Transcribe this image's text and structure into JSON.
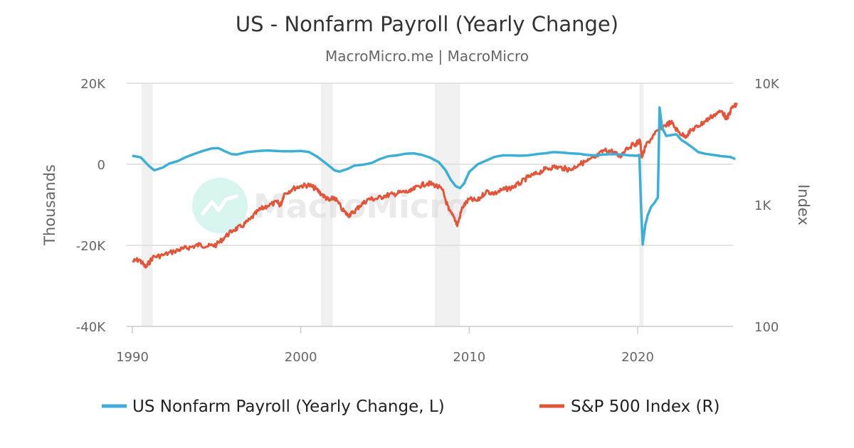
{
  "chart_data": {
    "type": "line",
    "title": "US - Nonfarm Payroll (Yearly Change)",
    "subtitle": "MacroMicro.me | MacroMicro",
    "watermark": "MacroMicro",
    "left_axis": {
      "title": "Thousands",
      "min": -40000,
      "max": 20000,
      "ticks": [
        20000,
        0,
        -20000,
        -40000
      ],
      "tick_labels": [
        "20K",
        "0",
        "-20K",
        "-40K"
      ]
    },
    "right_axis": {
      "title": "Index",
      "scale": "log",
      "min": 100,
      "max": 10000,
      "ticks": [
        10000,
        1000,
        100
      ],
      "tick_labels": [
        "10K",
        "1K",
        "100"
      ]
    },
    "x_axis": {
      "min": 1990,
      "max": 2026,
      "ticks": [
        1990,
        2000,
        2010,
        2020
      ],
      "tick_labels": [
        "1990",
        "2000",
        "2010",
        "2020"
      ]
    },
    "recessions": [
      [
        1990.55,
        1991.2
      ],
      [
        2001.2,
        2001.9
      ],
      [
        2007.95,
        2009.45
      ],
      [
        2020.1,
        2020.35
      ]
    ],
    "series": [
      {
        "name": "US Nonfarm Payroll (Yearly Change, L)",
        "axis": "left",
        "color": "#3eaed6",
        "points": [
          [
            1990.0,
            2100
          ],
          [
            1990.5,
            1700
          ],
          [
            1991.0,
            -500
          ],
          [
            1991.3,
            -1500
          ],
          [
            1991.8,
            -800
          ],
          [
            1992.2,
            200
          ],
          [
            1992.7,
            800
          ],
          [
            1993.2,
            1800
          ],
          [
            1993.7,
            2600
          ],
          [
            1994.2,
            3300
          ],
          [
            1994.7,
            3900
          ],
          [
            1995.1,
            4000
          ],
          [
            1995.5,
            3200
          ],
          [
            1995.9,
            2500
          ],
          [
            1996.2,
            2400
          ],
          [
            1996.8,
            3000
          ],
          [
            1997.5,
            3300
          ],
          [
            1998.0,
            3400
          ],
          [
            1998.5,
            3300
          ],
          [
            1999.0,
            3200
          ],
          [
            1999.5,
            3200
          ],
          [
            2000.0,
            3300
          ],
          [
            2000.5,
            3000
          ],
          [
            2001.0,
            1800
          ],
          [
            2001.5,
            200
          ],
          [
            2002.0,
            -1500
          ],
          [
            2002.3,
            -1800
          ],
          [
            2002.8,
            -1100
          ],
          [
            2003.2,
            -300
          ],
          [
            2003.7,
            -100
          ],
          [
            2004.2,
            300
          ],
          [
            2004.7,
            1300
          ],
          [
            2005.2,
            2000
          ],
          [
            2005.7,
            2200
          ],
          [
            2006.2,
            2600
          ],
          [
            2006.7,
            2700
          ],
          [
            2007.2,
            2300
          ],
          [
            2007.7,
            1600
          ],
          [
            2008.2,
            500
          ],
          [
            2008.6,
            -1500
          ],
          [
            2008.9,
            -3800
          ],
          [
            2009.2,
            -5400
          ],
          [
            2009.45,
            -5900
          ],
          [
            2009.7,
            -4700
          ],
          [
            2010.0,
            -1900
          ],
          [
            2010.5,
            0
          ],
          [
            2011.0,
            900
          ],
          [
            2011.5,
            1800
          ],
          [
            2012.0,
            2200
          ],
          [
            2012.5,
            2200
          ],
          [
            2013.0,
            2100
          ],
          [
            2013.5,
            2200
          ],
          [
            2014.0,
            2500
          ],
          [
            2014.5,
            2700
          ],
          [
            2015.0,
            3000
          ],
          [
            2015.5,
            2900
          ],
          [
            2016.0,
            2700
          ],
          [
            2016.5,
            2600
          ],
          [
            2017.0,
            2300
          ],
          [
            2017.5,
            2200
          ],
          [
            2018.0,
            2400
          ],
          [
            2018.5,
            2500
          ],
          [
            2019.0,
            2400
          ],
          [
            2019.5,
            2200
          ],
          [
            2019.9,
            2100
          ],
          [
            2020.1,
            2300
          ],
          [
            2020.2,
            -10000
          ],
          [
            2020.3,
            -19800
          ],
          [
            2020.45,
            -15000
          ],
          [
            2020.6,
            -12500
          ],
          [
            2020.8,
            -10500
          ],
          [
            2021.0,
            -9500
          ],
          [
            2021.2,
            -8200
          ],
          [
            2021.3,
            14000
          ],
          [
            2021.45,
            9000
          ],
          [
            2021.7,
            7000
          ],
          [
            2022.0,
            7200
          ],
          [
            2022.3,
            7400
          ],
          [
            2022.6,
            6000
          ],
          [
            2022.9,
            5200
          ],
          [
            2023.2,
            4300
          ],
          [
            2023.6,
            3000
          ],
          [
            2024.0,
            2600
          ],
          [
            2024.5,
            2300
          ],
          [
            2025.0,
            2000
          ],
          [
            2025.5,
            1800
          ],
          [
            2025.8,
            1300
          ]
        ]
      },
      {
        "name": "S&P 500 Index (R)",
        "axis": "right",
        "color": "#e0563b",
        "points": [
          [
            1990.0,
            340
          ],
          [
            1990.4,
            355
          ],
          [
            1990.8,
            305
          ],
          [
            1991.2,
            370
          ],
          [
            1991.8,
            385
          ],
          [
            1992.5,
            415
          ],
          [
            1993.0,
            435
          ],
          [
            1993.5,
            450
          ],
          [
            1994.0,
            470
          ],
          [
            1994.5,
            455
          ],
          [
            1995.0,
            470
          ],
          [
            1995.5,
            545
          ],
          [
            1996.0,
            620
          ],
          [
            1996.5,
            665
          ],
          [
            1997.0,
            760
          ],
          [
            1997.5,
            900
          ],
          [
            1998.0,
            980
          ],
          [
            1998.6,
            1050
          ],
          [
            1998.8,
            990
          ],
          [
            1999.0,
            1220
          ],
          [
            1999.5,
            1350
          ],
          [
            2000.0,
            1430
          ],
          [
            2000.5,
            1450
          ],
          [
            2000.9,
            1350
          ],
          [
            2001.3,
            1200
          ],
          [
            2001.7,
            1080
          ],
          [
            2002.0,
            1150
          ],
          [
            2002.5,
            900
          ],
          [
            2002.8,
            820
          ],
          [
            2003.1,
            860
          ],
          [
            2003.5,
            980
          ],
          [
            2004.0,
            1110
          ],
          [
            2004.5,
            1120
          ],
          [
            2005.0,
            1190
          ],
          [
            2005.5,
            1220
          ],
          [
            2006.0,
            1270
          ],
          [
            2006.5,
            1280
          ],
          [
            2007.0,
            1430
          ],
          [
            2007.5,
            1500
          ],
          [
            2007.9,
            1470
          ],
          [
            2008.4,
            1330
          ],
          [
            2008.8,
            900
          ],
          [
            2009.2,
            740
          ],
          [
            2009.3,
            680
          ],
          [
            2009.6,
            960
          ],
          [
            2010.0,
            1110
          ],
          [
            2010.5,
            1080
          ],
          [
            2011.0,
            1290
          ],
          [
            2011.5,
            1240
          ],
          [
            2012.0,
            1330
          ],
          [
            2012.5,
            1380
          ],
          [
            2013.0,
            1500
          ],
          [
            2013.5,
            1690
          ],
          [
            2014.0,
            1800
          ],
          [
            2014.5,
            1960
          ],
          [
            2015.0,
            2050
          ],
          [
            2015.6,
            2000
          ],
          [
            2016.0,
            1940
          ],
          [
            2016.5,
            2150
          ],
          [
            2017.0,
            2280
          ],
          [
            2017.5,
            2450
          ],
          [
            2018.0,
            2800
          ],
          [
            2018.5,
            2750
          ],
          [
            2018.95,
            2480
          ],
          [
            2019.3,
            2900
          ],
          [
            2019.9,
            3200
          ],
          [
            2020.15,
            3350
          ],
          [
            2020.25,
            2450
          ],
          [
            2020.5,
            3100
          ],
          [
            2021.0,
            3800
          ],
          [
            2021.5,
            4400
          ],
          [
            2021.98,
            4780
          ],
          [
            2022.4,
            4000
          ],
          [
            2022.8,
            3650
          ],
          [
            2023.2,
            4100
          ],
          [
            2023.6,
            4450
          ],
          [
            2024.0,
            4850
          ],
          [
            2024.5,
            5450
          ],
          [
            2025.0,
            5900
          ],
          [
            2025.3,
            5050
          ],
          [
            2025.6,
            6300
          ],
          [
            2025.9,
            6650
          ]
        ]
      }
    ]
  }
}
